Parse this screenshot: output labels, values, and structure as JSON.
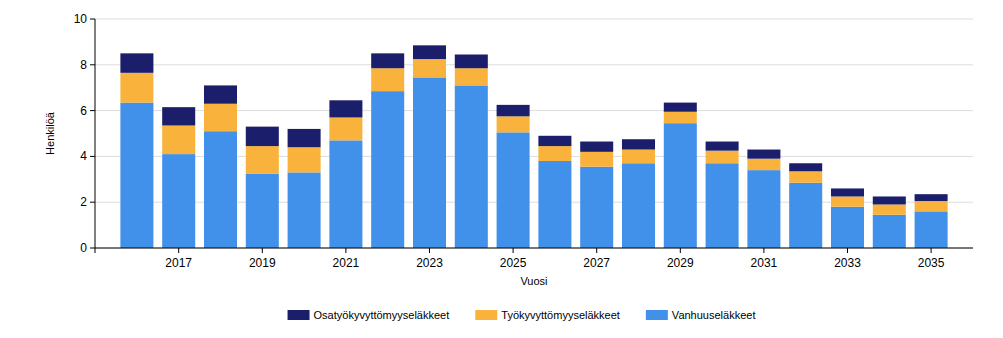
{
  "chart_data": {
    "type": "bar",
    "stacked": true,
    "grid": true,
    "legend": "bottom",
    "x_label": "Vuosi",
    "y_label": "Henkilöä",
    "categories": [
      null,
      "2017",
      null,
      "2019",
      null,
      "2021",
      null,
      "2023",
      null,
      "2025",
      null,
      "2027",
      null,
      "2029",
      null,
      "2031",
      null,
      "2033",
      null,
      "2035"
    ],
    "ylim": [
      0,
      10
    ],
    "yticks": [
      0,
      2,
      4,
      6,
      8,
      10
    ],
    "series": [
      {
        "name": "Vanhuuseläkkeet",
        "color": "#4190ea",
        "values": [
          6.35,
          4.1,
          5.1,
          3.25,
          3.3,
          4.7,
          6.85,
          7.45,
          7.1,
          5.05,
          3.8,
          3.55,
          3.7,
          5.45,
          3.7,
          3.4,
          2.85,
          1.8,
          1.45,
          1.6
        ]
      },
      {
        "name": "Työkyvyttömyyseläkkeet",
        "color": "#f9b33d",
        "values": [
          1.3,
          1.25,
          1.2,
          1.2,
          1.1,
          1.0,
          1.0,
          0.8,
          0.75,
          0.7,
          0.65,
          0.65,
          0.6,
          0.5,
          0.55,
          0.5,
          0.5,
          0.45,
          0.45,
          0.45
        ]
      },
      {
        "name": "Osatyökyvyttömyyseläkkeet",
        "color": "#1b1f6b",
        "values": [
          0.85,
          0.8,
          0.8,
          0.85,
          0.8,
          0.75,
          0.65,
          0.6,
          0.6,
          0.5,
          0.45,
          0.45,
          0.45,
          0.4,
          0.4,
          0.4,
          0.35,
          0.35,
          0.35,
          0.3
        ]
      }
    ]
  }
}
